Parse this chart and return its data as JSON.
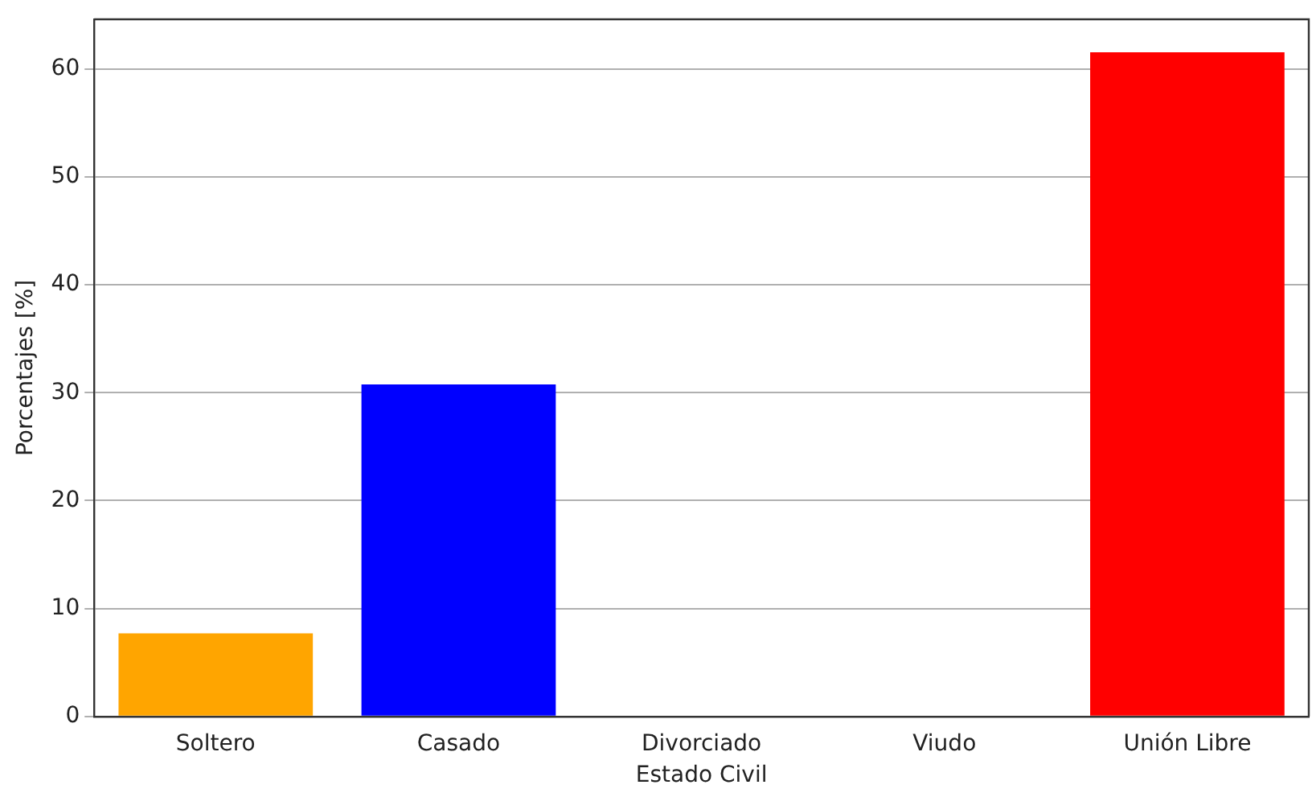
{
  "chart_data": {
    "type": "bar",
    "xlabel": "Estado Civil",
    "ylabel": "Porcentajes [%]",
    "categories": [
      "Soltero",
      "Casado",
      "Divorciado",
      "Viudo",
      "Unión Libre"
    ],
    "values": [
      7.69,
      30.77,
      0,
      0,
      61.54
    ],
    "colors": [
      "#ffa500",
      "#0000ff",
      "#ff69b4",
      "#9acd32",
      "#ff0000"
    ],
    "ylim": [
      0,
      64.6
    ],
    "yticks": [
      0,
      10,
      20,
      30,
      40,
      50,
      60
    ],
    "grid": "y",
    "legend": false
  }
}
